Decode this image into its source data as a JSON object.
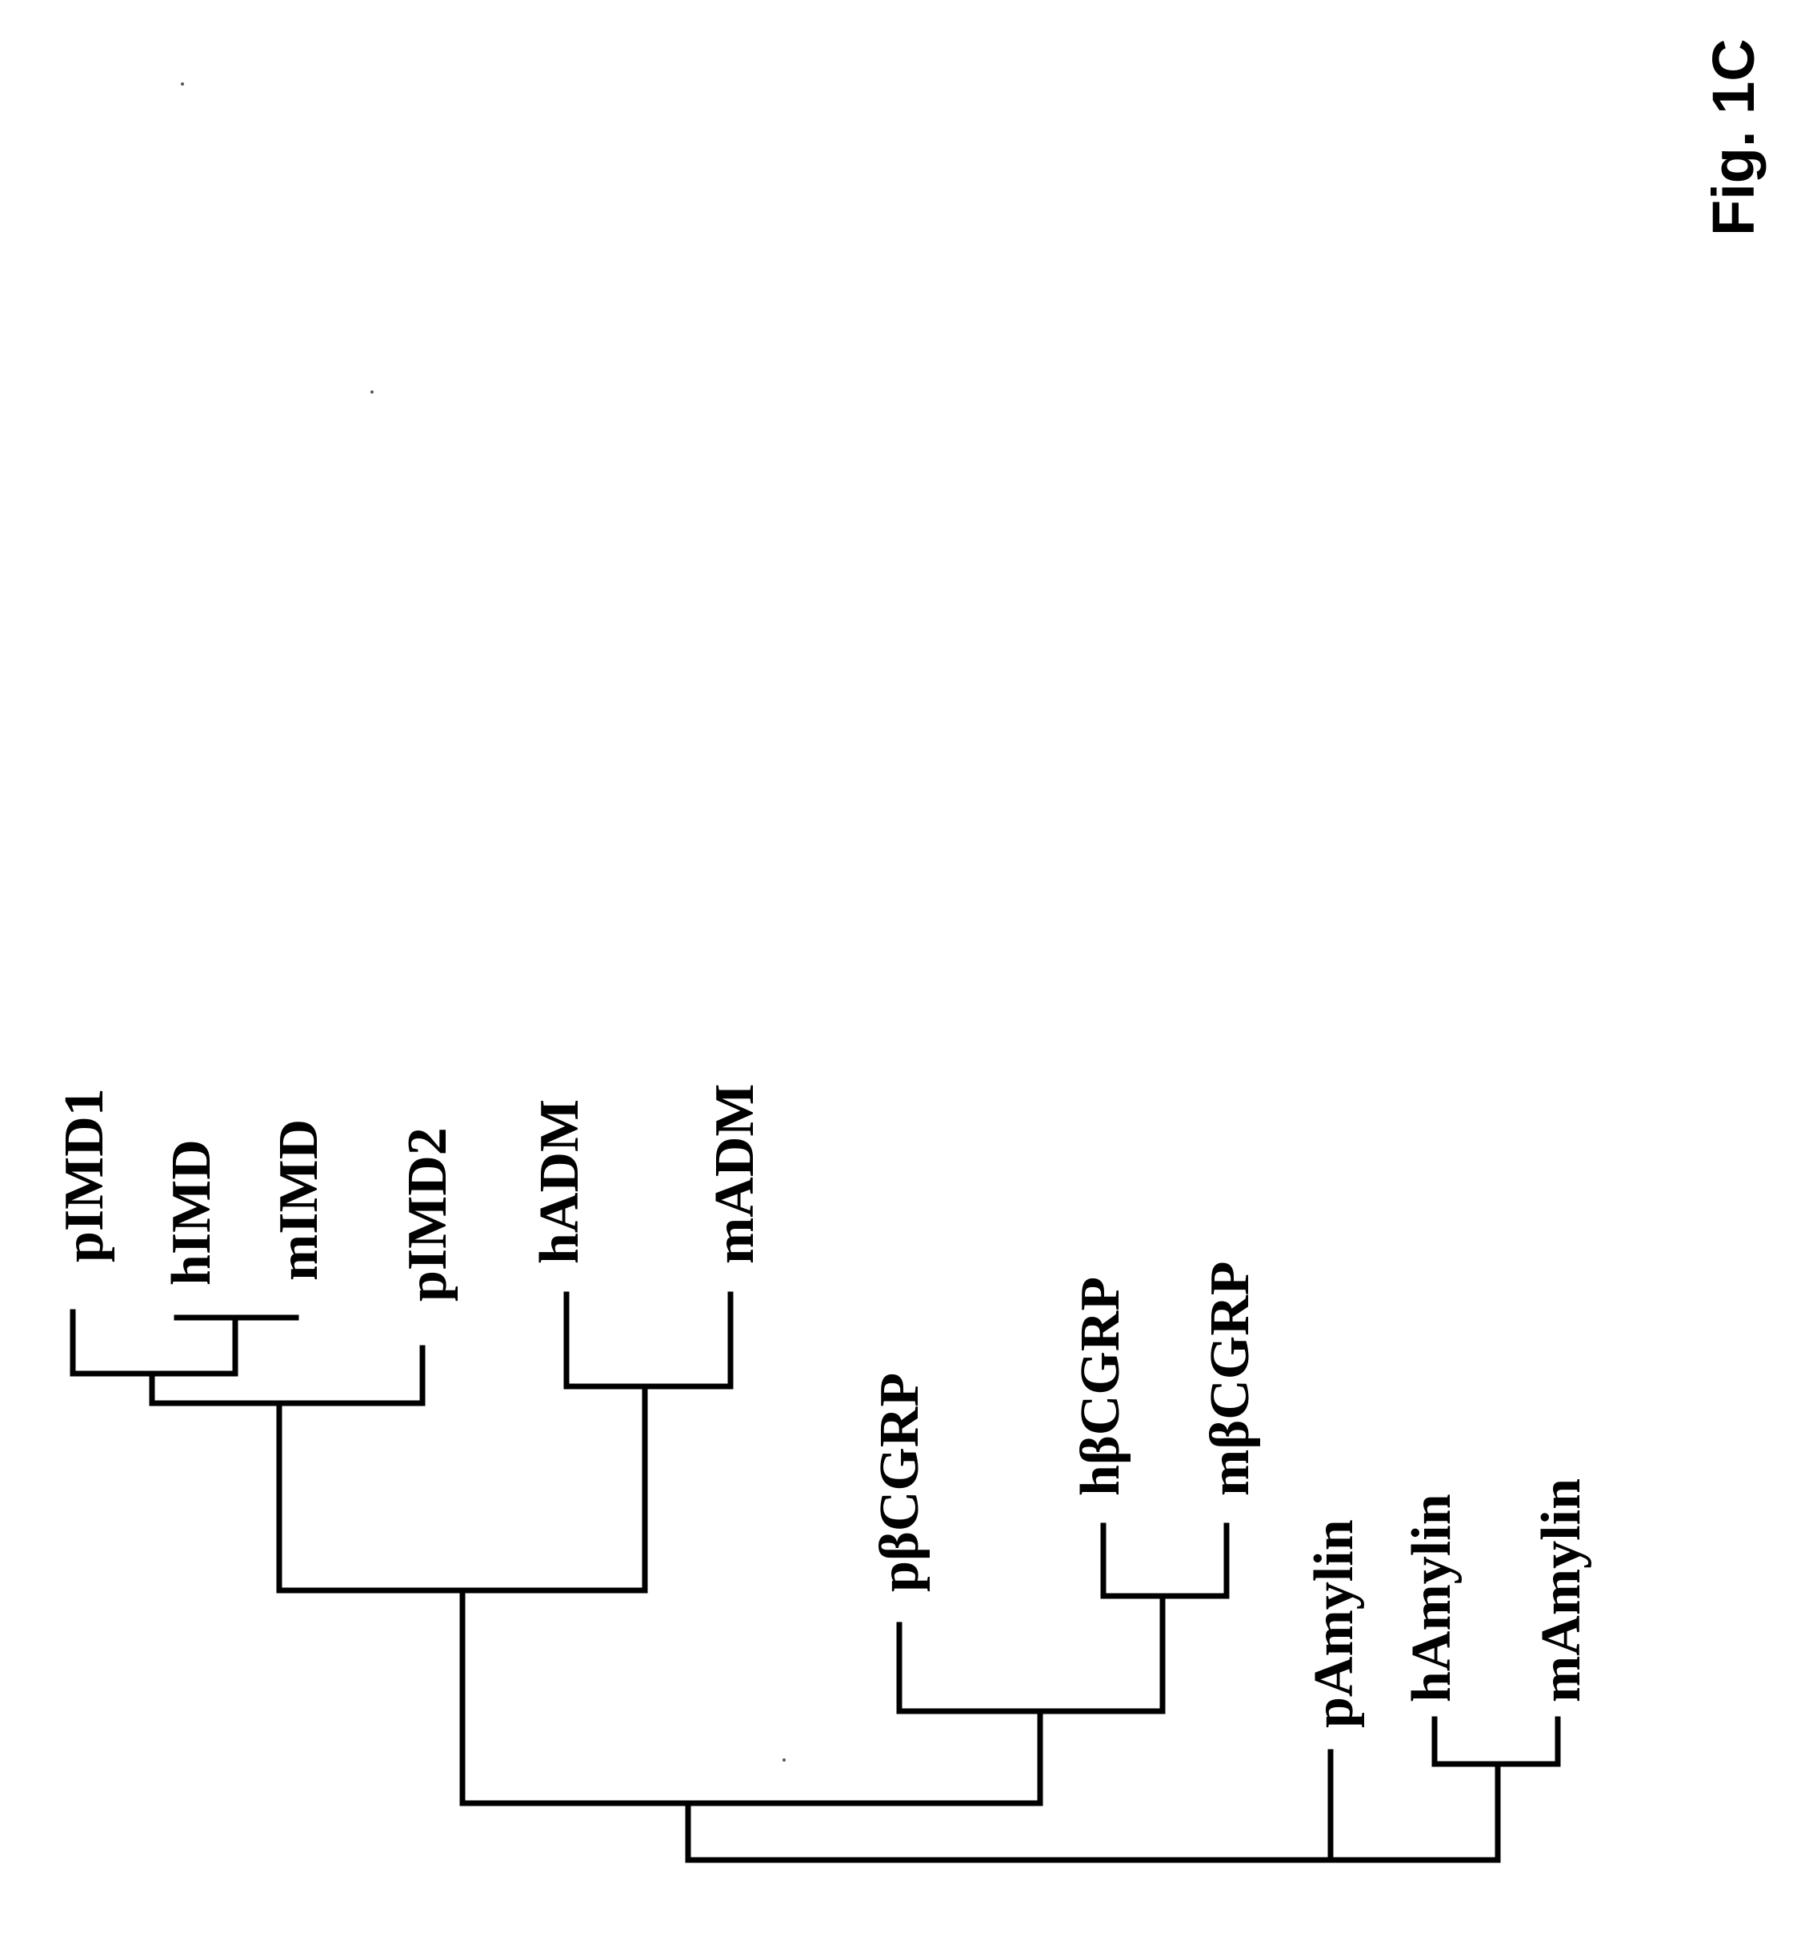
{
  "figure": {
    "label": "Fig. 1C"
  },
  "tree": {
    "leaves": [
      {
        "id": "pIMD1",
        "label": "pIMD1"
      },
      {
        "id": "hIMD",
        "label": "hIMD"
      },
      {
        "id": "mIMD",
        "label": "mIMD"
      },
      {
        "id": "pIMD2",
        "label": "pIMD2"
      },
      {
        "id": "hADM",
        "label": "hADM"
      },
      {
        "id": "mADM",
        "label": "mADM"
      },
      {
        "id": "pbCGRP",
        "label": "pβCGRP"
      },
      {
        "id": "hbCGRP",
        "label": "hβCGRP"
      },
      {
        "id": "mbCGRP",
        "label": "mβCGRP"
      },
      {
        "id": "pAmylin",
        "label": "pAmylin"
      },
      {
        "id": "hAmylin",
        "label": "hAmylin"
      },
      {
        "id": "mAmylin",
        "label": "mAmylin"
      }
    ]
  }
}
